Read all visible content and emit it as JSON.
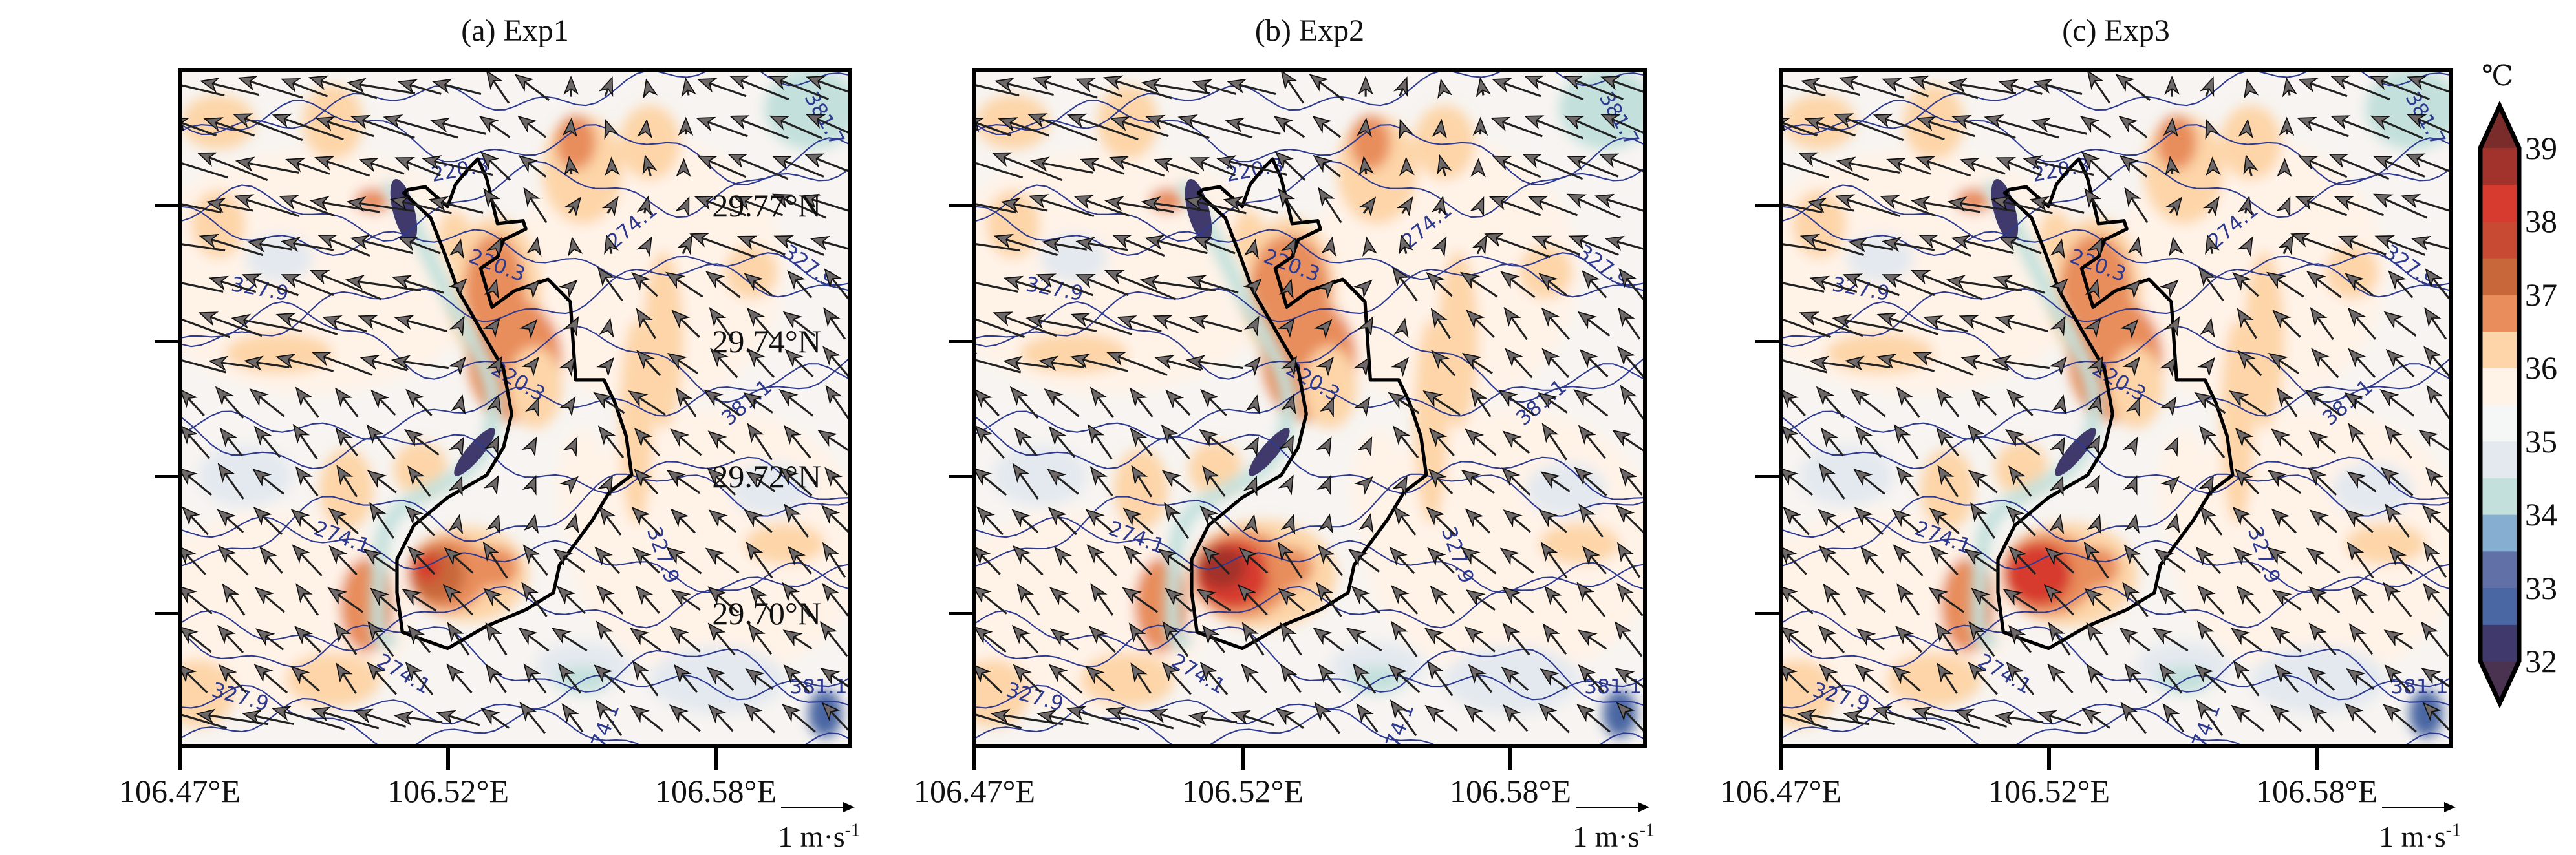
{
  "panels": [
    {
      "title": "(a) Exp1"
    },
    {
      "title": "(b) Exp2"
    },
    {
      "title": "(c) Exp3"
    }
  ],
  "axes": {
    "x_ticks": [
      "106.47°E",
      "106.52°E",
      "106.58°E"
    ],
    "y_ticks": [
      "29.77°N",
      "29.74°N",
      "29.72°N",
      "29.70°N"
    ]
  },
  "wind_scale": {
    "value": "1 m·s",
    "exp": "-1"
  },
  "contour_labels": [
    "220.3",
    "220.3",
    "220.3",
    "327.9",
    "327.9",
    "327.9",
    "274.1",
    "274.1",
    "274.1",
    "381.7",
    "327.9",
    "381.1",
    "381.1",
    "274.1"
  ],
  "colorbar": {
    "unit": "℃",
    "ticks": [
      "39",
      "38",
      "37",
      "36",
      "35",
      "34",
      "33",
      "32"
    ],
    "colors_low_to_high": [
      "#4a3350",
      "#3f3a6b",
      "#4a66a3",
      "#6270a8",
      "#86aed0",
      "#c3e0dc",
      "#e4e9ef",
      "#f4f7f6",
      "#fff3e8",
      "#fdd5a8",
      "#e88d5b",
      "#c8683a",
      "#c94a32",
      "#d73a2e",
      "#a2332c",
      "#7a2c2a"
    ]
  },
  "chart_data": {
    "type": "heatmap",
    "description_of_fields": "2 m temperature (shaded), wind vectors, contour lines",
    "panel_titles": [
      "(a) Exp1",
      "(b) Exp2",
      "(c) Exp3"
    ],
    "x_ticks": [
      106.47,
      106.52,
      106.58
    ],
    "y_ticks": [
      29.77,
      29.74,
      29.72,
      29.7
    ],
    "colorbar_range": [
      32,
      39
    ],
    "colorbar_step": 0.5,
    "colorbar_unit": "℃",
    "contour_levels": [
      220.3,
      274.1,
      327.9,
      381.1,
      381.7
    ],
    "wind_reference": "1 m·s-1",
    "max_temperature_core": {
      "Exp1": 38.5,
      "Exp2": 39,
      "Exp3": 38.5
    }
  }
}
